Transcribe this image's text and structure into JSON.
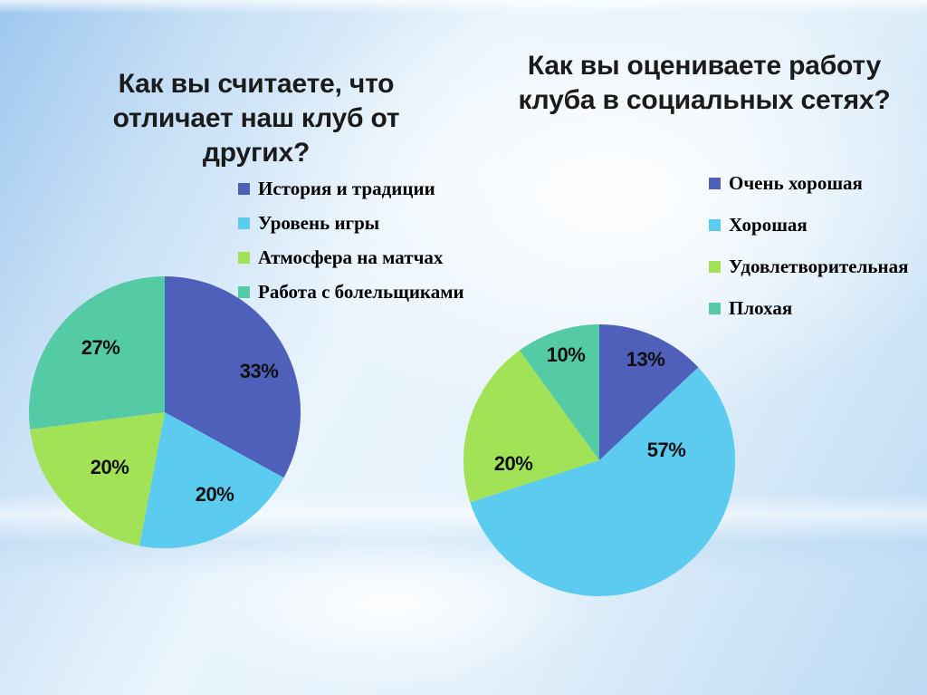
{
  "background": {
    "base_light": "#e9f4fc",
    "corner_blue": "#9ec7ee",
    "bottom_blue": "#bcdaf4"
  },
  "chart_data": [
    {
      "type": "pie",
      "title": "Как вы считаете, что отличает наш клуб от других?",
      "start_angle_deg": 0,
      "direction": "clockwise",
      "legend_position": "above-right-of-pie",
      "slices": [
        {
          "label": "История и традиции",
          "value": 33,
          "pct_label": "33%",
          "color": "#4e60ba",
          "label_x": 254,
          "label_y": 106
        },
        {
          "label": "Уровень игры",
          "value": 20,
          "pct_label": "20%",
          "color": "#5bcbf0",
          "label_x": 205,
          "label_y": 242
        },
        {
          "label": "Атмосфера на матчах",
          "value": 20,
          "pct_label": "20%",
          "color": "#a2e257",
          "label_x": 89,
          "label_y": 212
        },
        {
          "label": "Работа с болельщиками",
          "value": 27,
          "pct_label": "27%",
          "color": "#54cba4",
          "label_x": 79,
          "label_y": 80
        }
      ]
    },
    {
      "type": "pie",
      "title": "Как вы оцениваете работу клуба в социальных сетях?",
      "start_angle_deg": 0,
      "direction": "clockwise",
      "legend_position": "above-right-of-pie",
      "slices": [
        {
          "label": "Очень хорошая",
          "value": 13,
          "pct_label": "13%",
          "color": "#4e60ba",
          "label_x": 201,
          "label_y": 40
        },
        {
          "label": "Хорошая",
          "value": 57,
          "pct_label": "57%",
          "color": "#5bcbf0",
          "label_x": 224,
          "label_y": 140
        },
        {
          "label": "Удовлетворительная",
          "value": 20,
          "pct_label": "20%",
          "color": "#a2e257",
          "label_x": 55,
          "label_y": 155
        },
        {
          "label": "Плохая",
          "value": 10,
          "pct_label": "10%",
          "color": "#54cba4",
          "label_x": 113,
          "label_y": 35
        }
      ]
    }
  ]
}
